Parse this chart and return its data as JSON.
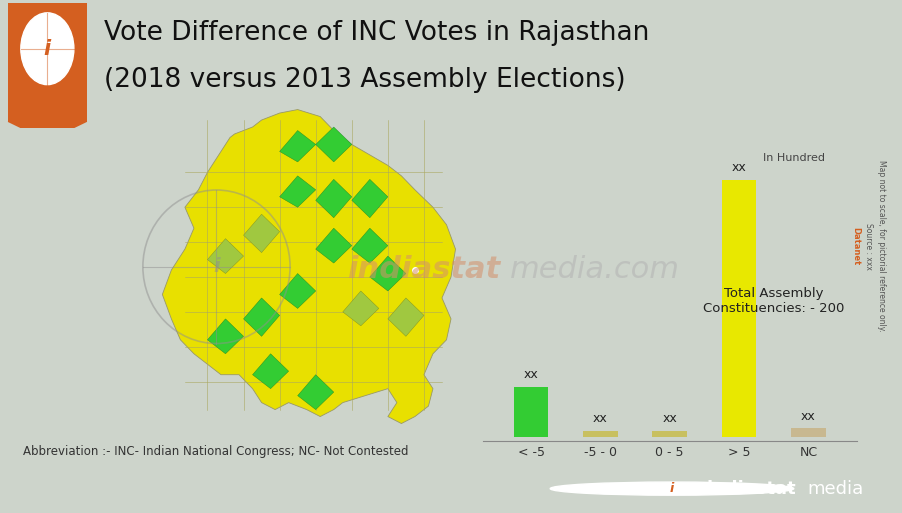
{
  "title_line1": "Vote Difference of INC Votes in Rajasthan",
  "title_line2": "(2018 versus 2013 Assembly Elections)",
  "categories": [
    "< -5",
    "-5 - 0",
    "0 - 5",
    "> 5",
    "NC"
  ],
  "bar_heights": [
    3.5,
    0.4,
    0.4,
    18.0,
    0.6
  ],
  "bar_labels": [
    "xx",
    "xx",
    "xx",
    "xx",
    "xx"
  ],
  "bar_colors": [
    "#33cc33",
    "#c8c060",
    "#c8c060",
    "#e8e800",
    "#c8b890"
  ],
  "in_hundred_label": "In Hundred",
  "annotation_text": "Total Assembly\nConstituencies: - 200",
  "abbreviation": "Abbreviation :- INC- Indian National Congress; NC- Not Contested",
  "bg_color": "#cdd4cb",
  "title_bg_color": "#dde3db",
  "orange_color": "#d45f20",
  "footer_bg": "#d45f20",
  "green_bar_color": "#33cc33",
  "yellow_bar_color": "#e8e800",
  "nc_bar_color": "#c8b890",
  "watermark_orange": "#d4906a",
  "watermark_gray": "#b0b0b0",
  "source_text": "Source : xxx",
  "datanet_text": "Datanet",
  "map_note": "Map not to scale, for pictorial reference only.",
  "title_fontsize": 19,
  "xlim": [
    -0.7,
    4.7
  ],
  "ylim": [
    -0.3,
    22
  ]
}
